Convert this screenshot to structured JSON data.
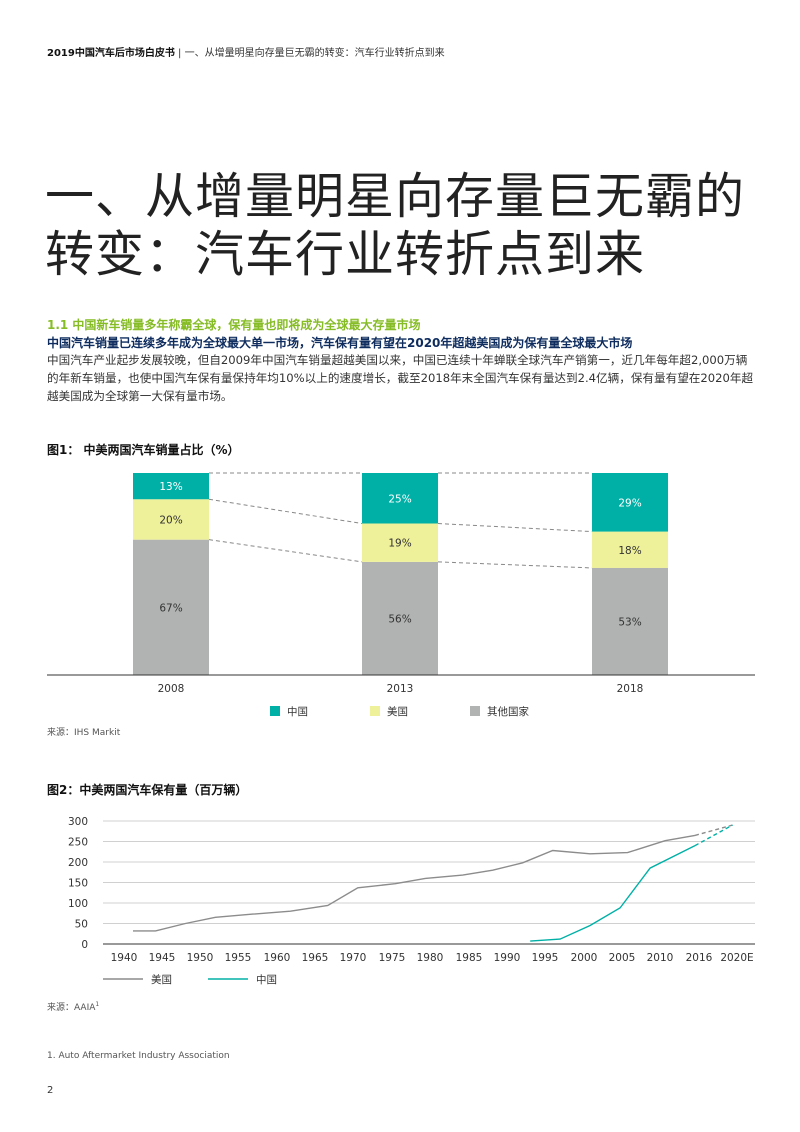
{
  "header": {
    "doc_title": "2019中国汽车后市场白皮书",
    "separator": "|",
    "section": "一、从增量明星向存量巨无霸的转变：汽车行业转折点到来"
  },
  "title": {
    "line1": "一、从增量明星向存量巨无霸的",
    "line2": "转变：汽车行业转折点到来"
  },
  "section_heading": "1.1 中国新车销量多年称霸全球，保有量也即将成为全球最大存量市场",
  "sub_heading": "中国汽车销量已连续多年成为全球最大单一市场，汽车保有量有望在2020年超越美国成为保有量全球最大市场",
  "body_text": "中国汽车产业起步发展较晚，但自2009年中国汽车销量超越美国以来，中国已连续十年蝉联全球汽车产销第一，近几年每年超2,000万辆的年新车销量，也使中国汽车保有量保持年均10%以上的速度增长，截至2018年末全国汽车保有量达到2.4亿辆，保有量有望在2020年超越美国成为全球第一大保有量市场。",
  "figure1": {
    "title": "图1： 中美两国汽车销量占比（%）",
    "source": "来源：IHS Markit",
    "chart_data": {
      "type": "bar",
      "stacked": true,
      "categories": [
        "2008",
        "2013",
        "2018"
      ],
      "series": [
        {
          "name": "中国",
          "values": [
            13,
            25,
            29
          ],
          "labels": [
            "13%",
            "25%",
            "29%"
          ],
          "color": "#00b0a6"
        },
        {
          "name": "美国",
          "values": [
            20,
            19,
            18
          ],
          "labels": [
            "20%",
            "19%",
            "18%"
          ],
          "color": "#eef09a"
        },
        {
          "name": "其他国家",
          "values": [
            67,
            56,
            53
          ],
          "labels": [
            "67%",
            "56%",
            "53%"
          ],
          "color": "#b1b3b3"
        }
      ],
      "ylim": [
        0,
        100
      ],
      "grid": false,
      "legend": "bottom"
    }
  },
  "figure2": {
    "title": "图2：中美两国汽车保有量（百万辆）",
    "source": "来源：AAIA",
    "source_sup": "1",
    "chart_data": {
      "type": "line",
      "x": [
        "1940",
        "1945",
        "1950",
        "1955",
        "1960",
        "1965",
        "1970",
        "1975",
        "1980",
        "1985",
        "1990",
        "1995",
        "2000",
        "2005",
        "2010",
        "2016",
        "2020E"
      ],
      "ylim": [
        0,
        300
      ],
      "yticks": [
        "0",
        "50",
        "100",
        "150",
        "200",
        "250",
        "300"
      ],
      "grid": true,
      "legend": "bottom",
      "series": [
        {
          "name": "美国",
          "color": "#8c8c8c",
          "values": [
            32,
            32,
            50,
            65,
            73,
            80,
            94,
            137,
            147,
            160,
            168,
            180,
            198,
            228,
            220,
            223,
            252,
            265
          ],
          "x_values": [
            1940,
            1943,
            1947,
            1951,
            1956,
            1961,
            1966,
            1970,
            1975,
            1979,
            1984,
            1988,
            1992,
            1996,
            2001,
            2006,
            2011,
            2015
          ]
        },
        {
          "name": "美国预测",
          "color": "#8c8c8c",
          "dashed": true,
          "values": [
            265,
            290
          ],
          "x_values": [
            2015,
            2020
          ]
        },
        {
          "name": "中国",
          "color": "#00b0a6",
          "values": [
            7,
            12,
            45,
            88,
            185,
            240
          ],
          "x_values": [
            1993,
            1997,
            2001,
            2005,
            2009,
            2015
          ]
        },
        {
          "name": "中国预测",
          "color": "#00b0a6",
          "dashed": true,
          "values": [
            240,
            290
          ],
          "x_values": [
            2015,
            2020
          ]
        }
      ]
    }
  },
  "footnote": "1. Auto Aftermarket Industry Association",
  "page_number": "2"
}
